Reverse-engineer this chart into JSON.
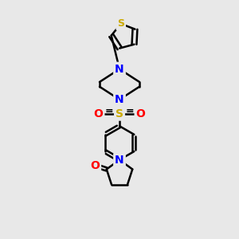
{
  "bg_color": "#e8e8e8",
  "bond_color": "#000000",
  "bond_width": 1.8,
  "atom_colors": {
    "N": "#0000ff",
    "O": "#ff0000",
    "S_sulfonyl": "#ccaa00",
    "S_thiophene": "#ccaa00"
  },
  "font_size_atom": 10,
  "fig_size": [
    3.0,
    3.0
  ],
  "dpi": 100
}
